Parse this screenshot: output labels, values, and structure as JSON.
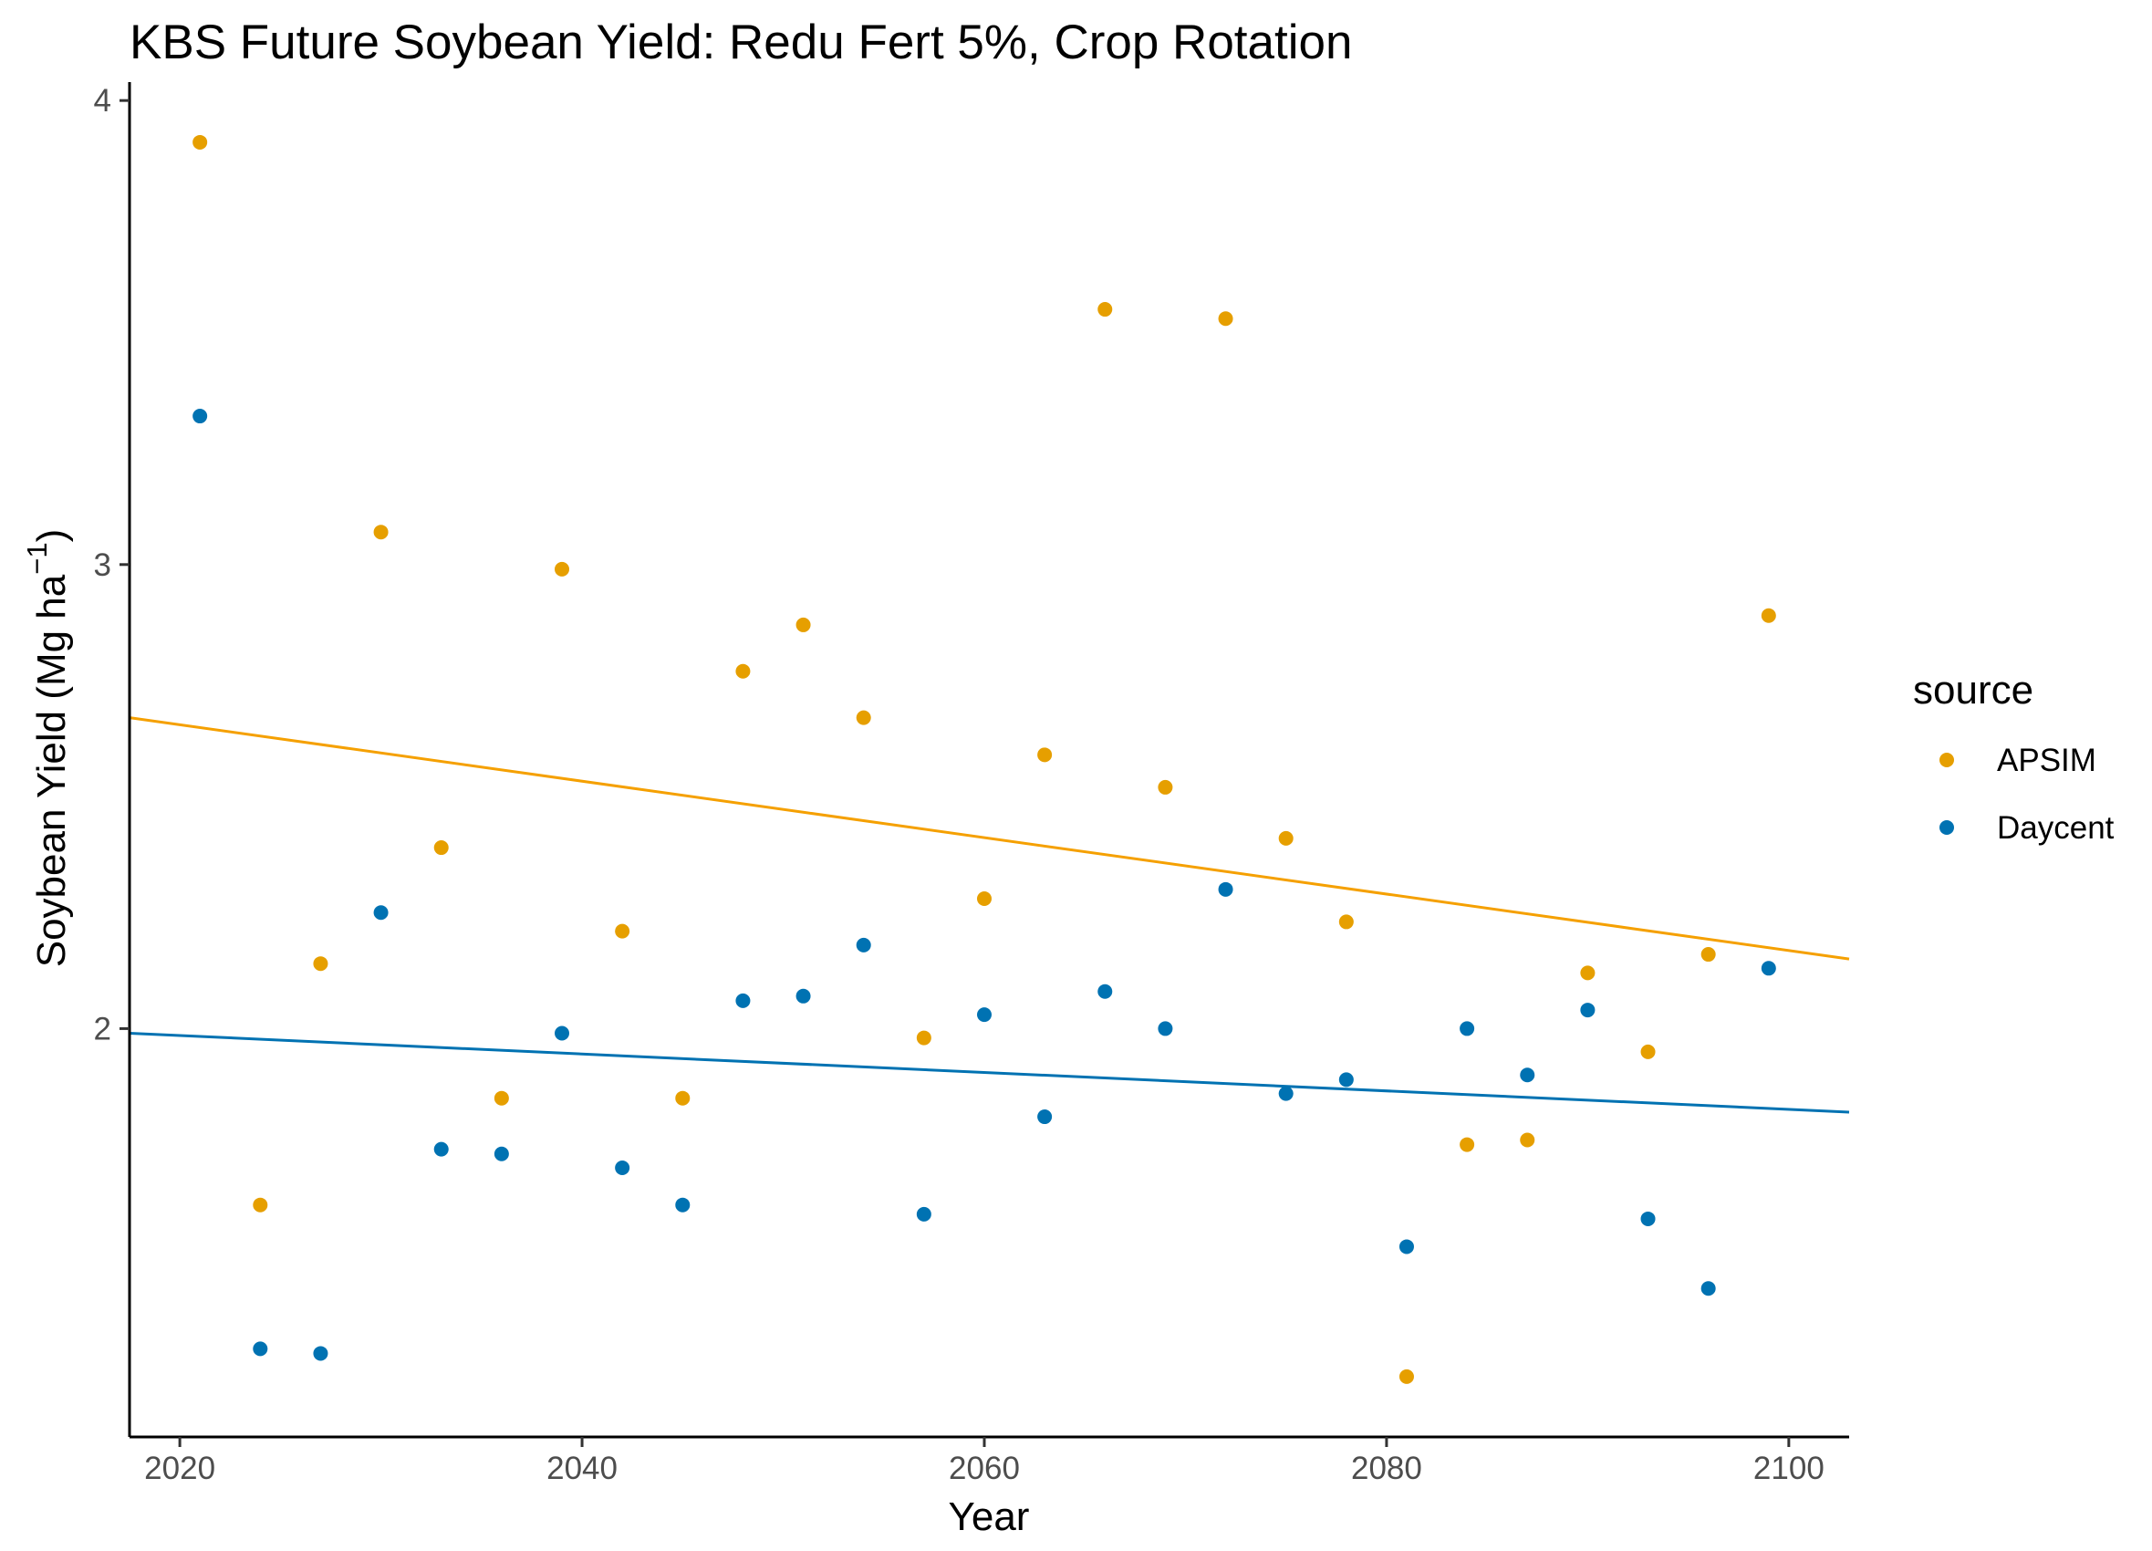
{
  "chart_data": {
    "type": "scatter",
    "title": "KBS Future Soybean Yield:  Redu Fert 5%, Crop Rotation",
    "xlabel": "Year",
    "ylabel": "Soybean Yield (Mg ha",
    "ylabel_unit_exponent": "−1",
    "ylabel_close": ")",
    "xlim": [
      2017.5,
      2103
    ],
    "ylim": [
      1.12,
      4.02
    ],
    "x_ticks": [
      2020,
      2040,
      2060,
      2080,
      2100
    ],
    "y_ticks": [
      2,
      3,
      4
    ],
    "grid": false,
    "legend": {
      "title": "source",
      "position": "right"
    },
    "series": [
      {
        "name": "APSIM",
        "color": "#E69F00",
        "trend_color": "#F5A000",
        "trend": {
          "x": [
            2017.5,
            2103
          ],
          "y": [
            2.67,
            2.15
          ]
        },
        "x": [
          2021,
          2024,
          2027,
          2030,
          2033,
          2036,
          2039,
          2042,
          2045,
          2048,
          2051,
          2054,
          2057,
          2060,
          2063,
          2066,
          2069,
          2072,
          2075,
          2078,
          2081,
          2084,
          2087,
          2090,
          2093,
          2096,
          2099
        ],
        "y": [
          3.91,
          1.62,
          2.14,
          3.07,
          2.39,
          1.85,
          2.99,
          2.21,
          1.85,
          2.77,
          2.87,
          2.67,
          1.98,
          2.28,
          2.59,
          3.55,
          2.52,
          3.53,
          2.41,
          2.23,
          1.25,
          1.75,
          1.76,
          2.12,
          1.95,
          2.16,
          2.89
        ]
      },
      {
        "name": "Daycent",
        "color": "#0072B2",
        "trend_color": "#0072B2",
        "trend": {
          "x": [
            2017.5,
            2103
          ],
          "y": [
            1.99,
            1.82
          ]
        },
        "x": [
          2021,
          2024,
          2027,
          2030,
          2033,
          2036,
          2039,
          2042,
          2045,
          2048,
          2051,
          2054,
          2057,
          2060,
          2063,
          2066,
          2069,
          2072,
          2075,
          2078,
          2081,
          2084,
          2087,
          2090,
          2093,
          2096,
          2099
        ],
        "y": [
          3.32,
          1.31,
          1.3,
          2.25,
          1.74,
          1.73,
          1.99,
          1.7,
          1.62,
          2.06,
          2.07,
          2.18,
          1.6,
          2.03,
          1.81,
          2.08,
          2.0,
          2.3,
          1.86,
          1.89,
          1.53,
          2.0,
          1.9,
          2.04,
          1.59,
          1.44,
          2.13
        ]
      }
    ]
  }
}
